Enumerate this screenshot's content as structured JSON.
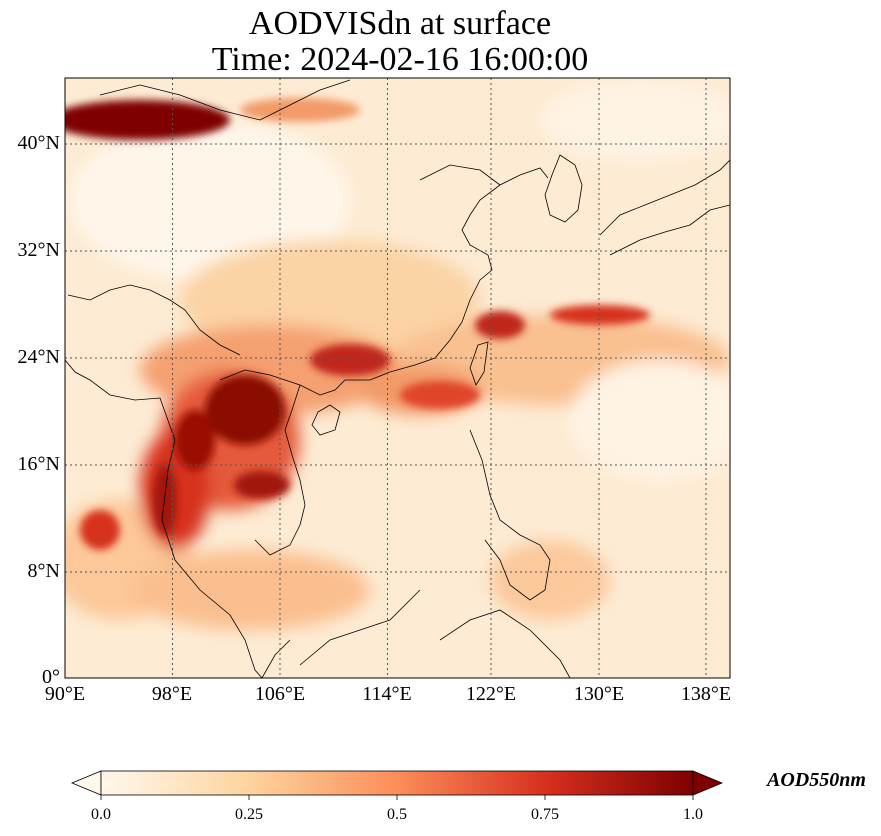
{
  "title": {
    "line1": "AODVISdn at surface",
    "line2": "Time: 2024-02-16 16:00:00"
  },
  "map": {
    "lon_range": [
      90,
      139.5
    ],
    "lat_range": [
      0,
      44.5
    ],
    "lon_ticks": [
      "90°E",
      "98°E",
      "106°E",
      "114°E",
      "122°E",
      "130°E",
      "138°E"
    ],
    "lat_ticks": [
      "0°",
      "8°N",
      "16°N",
      "24°N",
      "32°N",
      "40°N"
    ],
    "gridlines": "dotted",
    "colormap": "OrRd"
  },
  "colorbar": {
    "label": "AOD550nm",
    "ticks": [
      "0.0",
      "0.25",
      "0.5",
      "0.75",
      "1.0"
    ],
    "range": [
      0.0,
      1.0
    ],
    "colors": [
      "#fff7ec",
      "#fdd49e",
      "#fc8d59",
      "#d7301f",
      "#7f0000"
    ],
    "extend": "both"
  }
}
